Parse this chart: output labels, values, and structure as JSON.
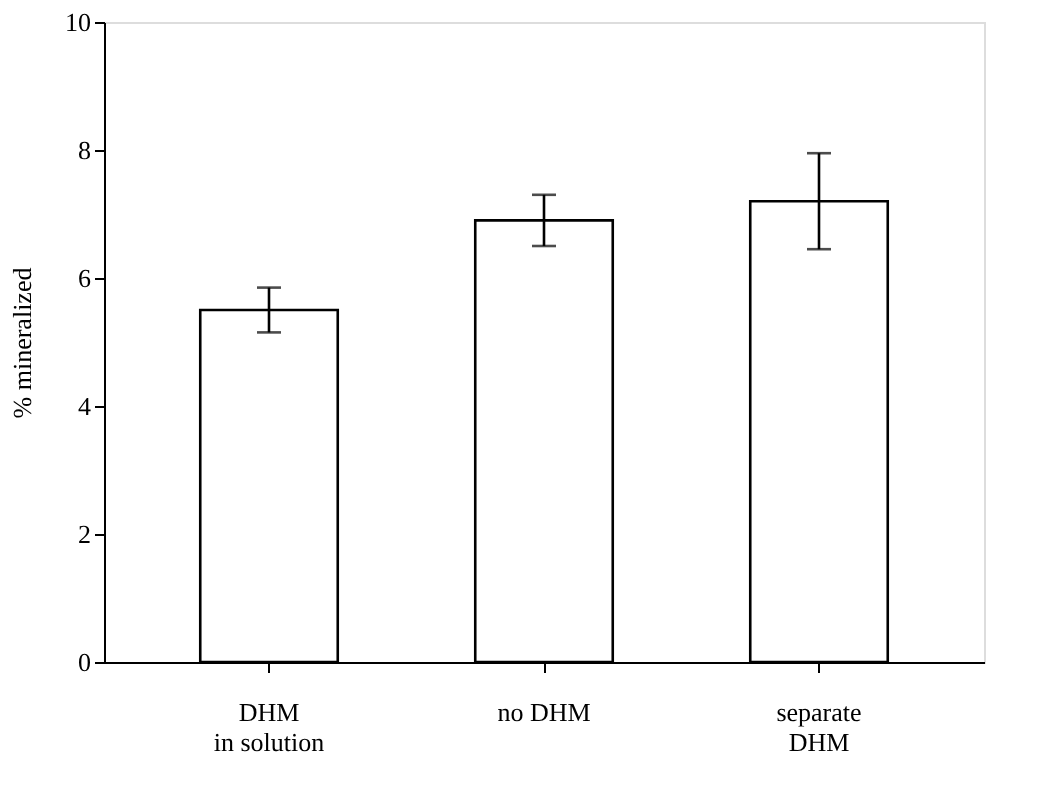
{
  "chart_data": {
    "type": "bar",
    "categories": [
      "DHM\nin solution",
      "no DHM",
      "separate\nDHM"
    ],
    "values": [
      5.5,
      6.9,
      7.2
    ],
    "errors": [
      0.35,
      0.4,
      0.75
    ],
    "color": "#ffffff",
    "ylabel": "% mineralized",
    "ylim": [
      0,
      10
    ],
    "yticks": [
      0,
      2,
      4,
      6,
      8,
      10
    ],
    "grid": false
  }
}
